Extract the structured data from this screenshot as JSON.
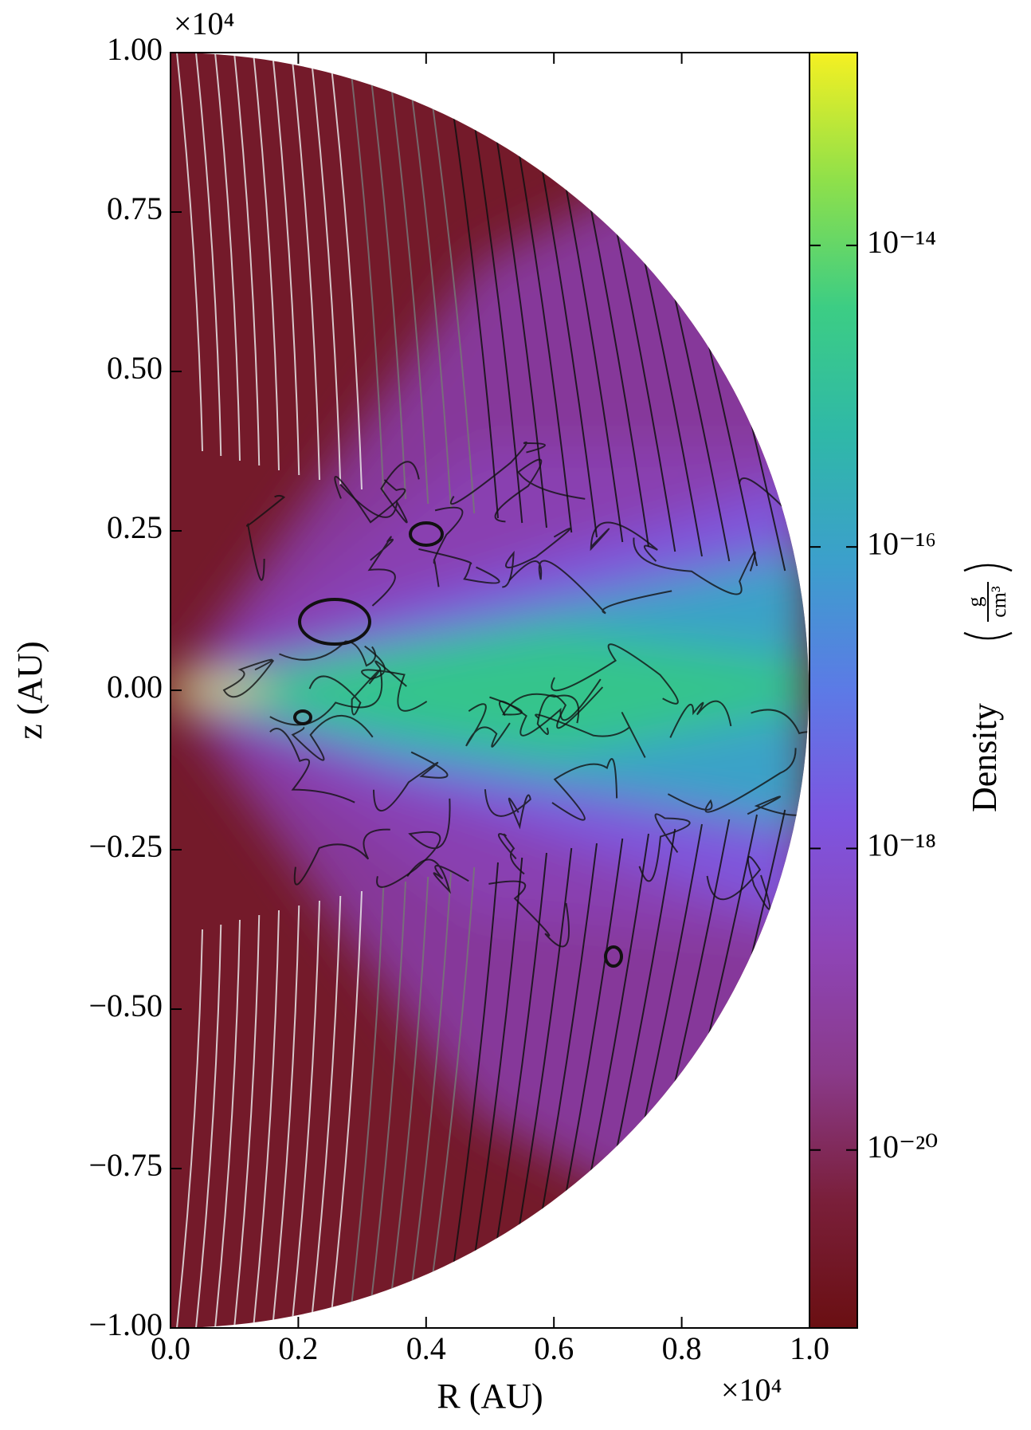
{
  "chart_data": {
    "type": "heatmap",
    "x_label": "R  (AU)",
    "y_label": "z  (AU)",
    "x_multiplier": "×10⁴",
    "y_multiplier": "×10⁴",
    "xlim": [
      0,
      1
    ],
    "ylim": [
      -1,
      1
    ],
    "xticks": [
      {
        "value": 0,
        "label": "0.0"
      },
      0.2,
      0.4,
      0.6,
      0.8,
      {
        "value": 1,
        "label": "1.0"
      }
    ],
    "yticks": [
      {
        "value": -1,
        "label": "−1.00"
      },
      {
        "value": -0.75,
        "label": "−0.75"
      },
      {
        "value": -0.5,
        "label": "−0.50"
      },
      {
        "value": -0.25,
        "label": "−0.25"
      },
      {
        "value": 0,
        "label": "0.00"
      },
      {
        "value": 0.25,
        "label": "0.25"
      },
      {
        "value": 0.5,
        "label": "0.50"
      },
      {
        "value": 0.75,
        "label": "0.75"
      },
      {
        "value": 1,
        "label": "1.00"
      }
    ],
    "colorbar": {
      "label": "Density",
      "units": {
        "numerator": "g",
        "denominator": "cm³"
      },
      "log_scale": true,
      "lim": [
        6.6e-22,
        1.9e-13
      ],
      "ticks": [
        {
          "value": 1e-20,
          "label": "10⁻²⁰"
        },
        {
          "value": 1e-18,
          "label": "10⁻¹⁸"
        },
        {
          "value": 1e-16,
          "label": "10⁻¹⁶"
        },
        {
          "value": 1e-14,
          "label": "10⁻¹⁴"
        }
      ],
      "colormap": [
        "#6a0f12",
        "#7a1f3a",
        "#8a3a8a",
        "#8e45b8",
        "#7d55e0",
        "#5c7ae6",
        "#3c9fcc",
        "#2fb8a8",
        "#3ccd84",
        "#8fe04a",
        "#f5f022"
      ]
    }
  }
}
